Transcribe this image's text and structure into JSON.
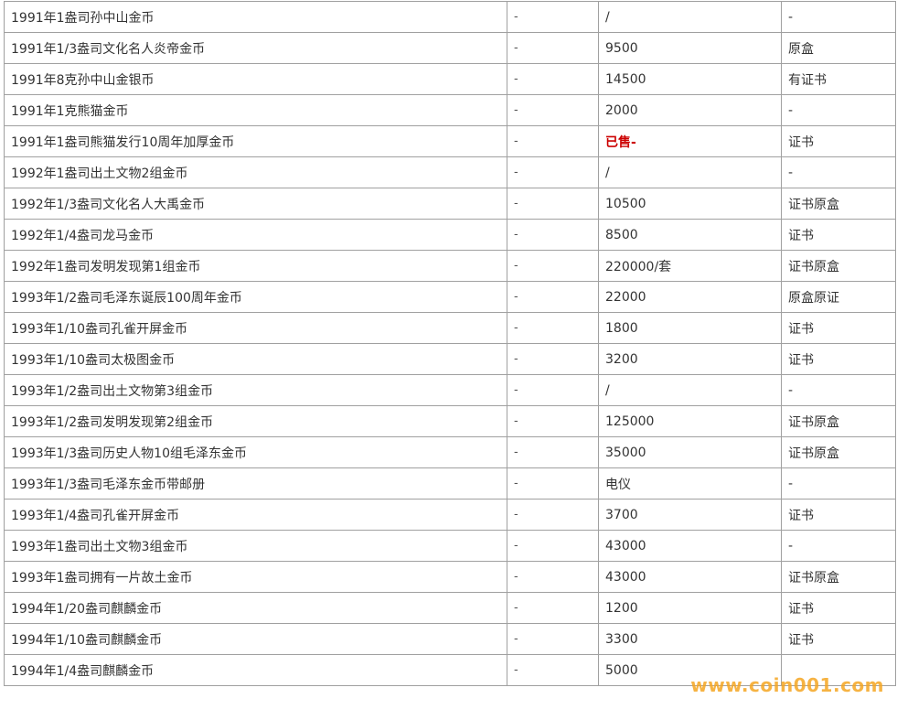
{
  "table": {
    "rows": [
      [
        "1991年1盎司孙中山金币",
        "-",
        "/",
        "-"
      ],
      [
        "1991年1/3盎司文化名人炎帝金币",
        "-",
        "9500",
        "原盒"
      ],
      [
        "1991年8克孙中山金银币",
        "-",
        "14500",
        "有证书"
      ],
      [
        "1991年1克熊猫金币",
        "-",
        "2000",
        "-"
      ],
      [
        "1991年1盎司熊猫发行10周年加厚金币",
        "-",
        {
          "text": "已售-",
          "color": "#cc0000"
        },
        "证书"
      ],
      [
        "1992年1盎司出土文物2组金币",
        "-",
        "/",
        "-"
      ],
      [
        "1992年1/3盎司文化名人大禹金币",
        "-",
        "10500",
        "证书原盒"
      ],
      [
        "1992年1/4盎司龙马金币",
        "-",
        "8500",
        "证书"
      ],
      [
        "1992年1盎司发明发现第1组金币",
        "-",
        "220000/套",
        "证书原盒"
      ],
      [
        "1993年1/2盎司毛泽东诞辰100周年金币",
        "-",
        "22000",
        "原盒原证"
      ],
      [
        "1993年1/10盎司孔雀开屏金币",
        "-",
        "1800",
        "证书"
      ],
      [
        "1993年1/10盎司太极图金币",
        "-",
        "3200",
        "证书"
      ],
      [
        "1993年1/2盎司出土文物第3组金币",
        "-",
        "/",
        "-"
      ],
      [
        "1993年1/2盎司发明发现第2组金币",
        "-",
        "125000",
        "证书原盒"
      ],
      [
        "1993年1/3盎司历史人物10组毛泽东金币",
        "-",
        "35000",
        "证书原盒"
      ],
      [
        "1993年1/3盎司毛泽东金币带邮册",
        "-",
        "电仪",
        "-"
      ],
      [
        "1993年1/4盎司孔雀开屏金币",
        "-",
        "3700",
        "证书"
      ],
      [
        "1993年1盎司出土文物3组金币",
        "-",
        "43000",
        "-"
      ],
      [
        "1993年1盎司拥有一片故土金币",
        "-",
        "43000",
        "证书原盒"
      ],
      [
        "1994年1/20盎司麒麟金币",
        "-",
        "1200",
        "证书"
      ],
      [
        "1994年1/10盎司麒麟金币",
        "-",
        "3300",
        "证书"
      ],
      [
        "1994年1/4盎司麒麟金币",
        "-",
        "5000",
        ""
      ]
    ]
  },
  "watermark": "www.coin001.com"
}
